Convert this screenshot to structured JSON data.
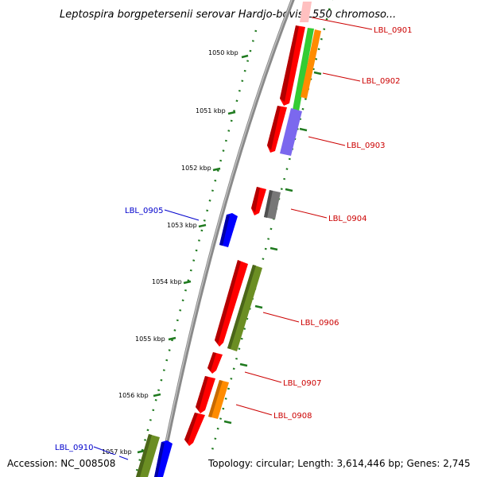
{
  "title": "Leptospira borgpetersenii serovar Hardjo-bovis L550 chromoso...",
  "footer": {
    "accession": "Accession: NC_008508",
    "topology": "Topology: circular; Length: 3,614,446 bp; Genes: 2,745"
  },
  "ticks": [
    {
      "label": "1050 kbp"
    },
    {
      "label": "1051 kbp"
    },
    {
      "label": "1052 kbp"
    },
    {
      "label": "1053 kbp"
    },
    {
      "label": "1054 kbp"
    },
    {
      "label": "1055 kbp"
    },
    {
      "label": "1056 kbp"
    },
    {
      "label": "1057 kbp"
    }
  ],
  "gene_labels": [
    {
      "label": "LBL_0901",
      "color": "#cc0000"
    },
    {
      "label": "LBL_0902",
      "color": "#cc0000"
    },
    {
      "label": "LBL_0903",
      "color": "#cc0000"
    },
    {
      "label": "LBL_0904",
      "color": "#cc0000"
    },
    {
      "label": "LBL_0905",
      "color": "#0000cc"
    },
    {
      "label": "LBL_0906",
      "color": "#cc0000"
    },
    {
      "label": "LBL_0907",
      "color": "#cc0000"
    },
    {
      "label": "LBL_0908",
      "color": "#cc0000"
    },
    {
      "label": "LBL_0910",
      "color": "#0000cc"
    }
  ],
  "colors": {
    "backbone": "#808080",
    "ticks": "#1f7a1f",
    "cds_red": "#ff0000",
    "cds_green": "#33cc33",
    "cds_orange": "#ff8c00",
    "cds_purple": "#7b68ee",
    "cds_grey": "#777777",
    "cds_olive": "#6b8e23",
    "cds_blue": "#0000ff",
    "cds_pink": "#ffc0c0"
  }
}
